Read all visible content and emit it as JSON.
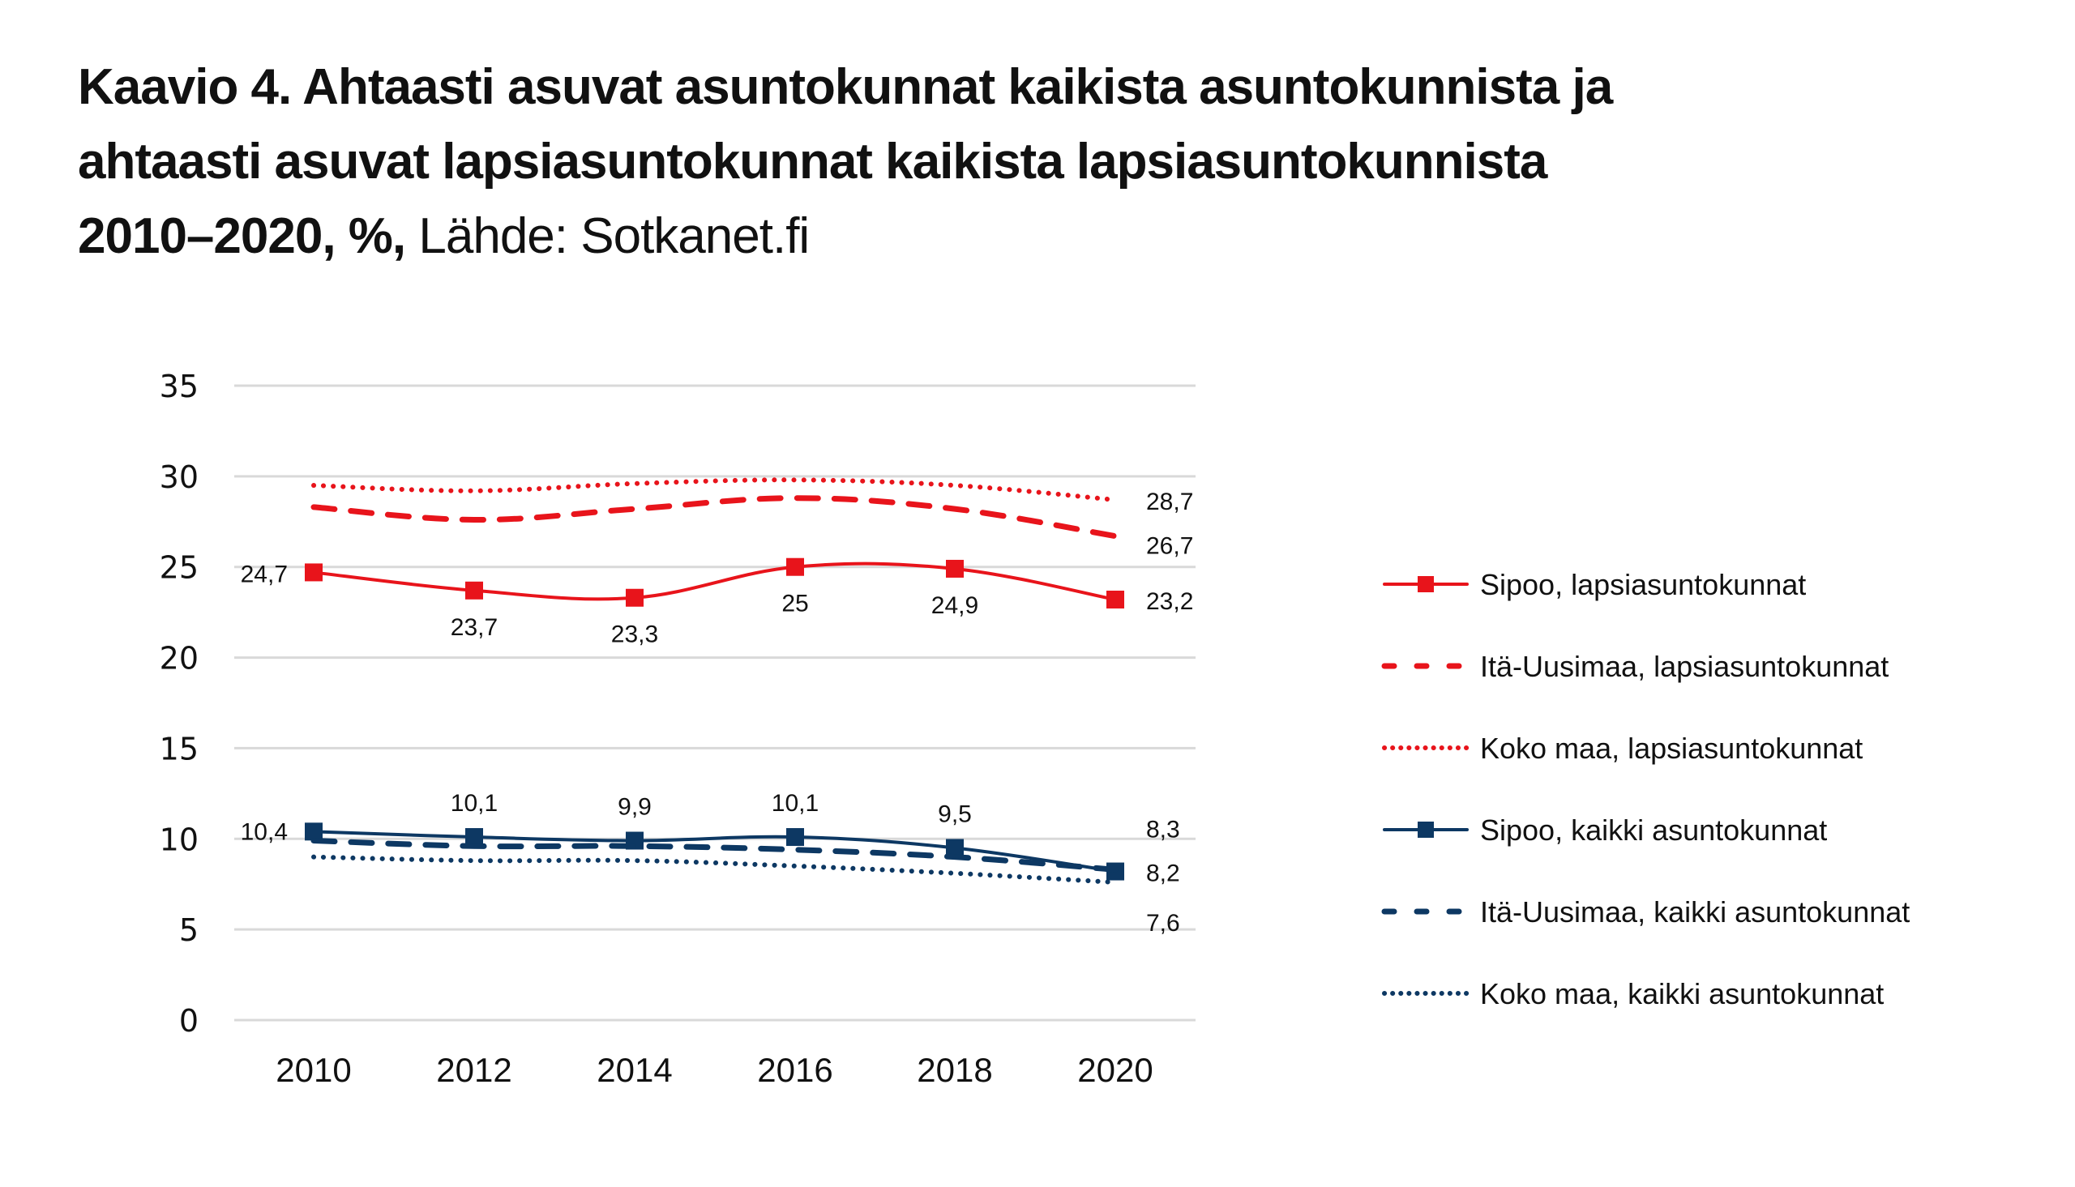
{
  "chart_data": {
    "type": "line",
    "title": "Kaavio 4. Ahtaasti asuvat asuntokunnat kaikista asuntokunnista ja ahtaasti asuvat lapsiasuntokunnat kaikista lapsiasuntokunnista 2010–2020, %,",
    "title_lines": [
      "Kaavio 4. Ahtaasti asuvat asuntokunnat kaikista asuntokunnista ja",
      "ahtaasti asuvat lapsiasuntokunnat kaikista lapsiasuntokunnista",
      "2010–2020, %,"
    ],
    "source": "Lähde: Sotkanet.fi",
    "xlabel": "",
    "ylabel": "",
    "x": [
      "2010",
      "2012",
      "2014",
      "2016",
      "2018",
      "2020"
    ],
    "ylim": [
      0,
      35
    ],
    "yticks": [
      "0",
      "5",
      "10",
      "15",
      "20",
      "25",
      "30",
      "35"
    ],
    "grid": true,
    "legend_position": "right",
    "series": [
      {
        "name": "Sipoo, lapsiasuntokunnat",
        "color": "#e8141b",
        "style": "solid",
        "marker": "square",
        "values": [
          24.7,
          23.7,
          23.3,
          25,
          24.9,
          23.2
        ],
        "labels": [
          "24,7",
          "23,7",
          "23,3",
          "25",
          "24,9",
          "23,2"
        ]
      },
      {
        "name": "Itä-Uusimaa, lapsiasuntokunnat",
        "color": "#e8141b",
        "style": "dashed",
        "marker": "none",
        "values": [
          28.3,
          27.6,
          28.2,
          28.8,
          28.2,
          26.7
        ],
        "labels": [
          "",
          "",
          "",
          "",
          "",
          "26,7"
        ]
      },
      {
        "name": "Koko maa, lapsiasuntokunnat",
        "color": "#e8141b",
        "style": "dotted",
        "marker": "none",
        "values": [
          29.5,
          29.2,
          29.6,
          29.8,
          29.5,
          28.7
        ],
        "labels": [
          "",
          "",
          "",
          "",
          "",
          "28,7"
        ]
      },
      {
        "name": "Sipoo, kaikki asuntokunnat",
        "color": "#0d3863",
        "style": "solid",
        "marker": "square",
        "values": [
          10.4,
          10.1,
          9.9,
          10.1,
          9.5,
          8.2
        ],
        "labels": [
          "10,4",
          "10,1",
          "9,9",
          "10,1",
          "9,5",
          "8,2"
        ]
      },
      {
        "name": "Itä-Uusimaa, kaikki asuntokunnat",
        "color": "#0d3863",
        "style": "dashed",
        "marker": "none",
        "values": [
          9.9,
          9.6,
          9.6,
          9.4,
          9.0,
          8.3
        ],
        "labels": [
          "",
          "",
          "",
          "",
          "",
          "8,3"
        ]
      },
      {
        "name": "Koko maa, kaikki asuntokunnat",
        "color": "#0d3863",
        "style": "dotted",
        "marker": "none",
        "values": [
          9.0,
          8.8,
          8.8,
          8.5,
          8.1,
          7.6
        ],
        "labels": [
          "",
          "",
          "",
          "",
          "",
          "7,6"
        ]
      }
    ]
  }
}
